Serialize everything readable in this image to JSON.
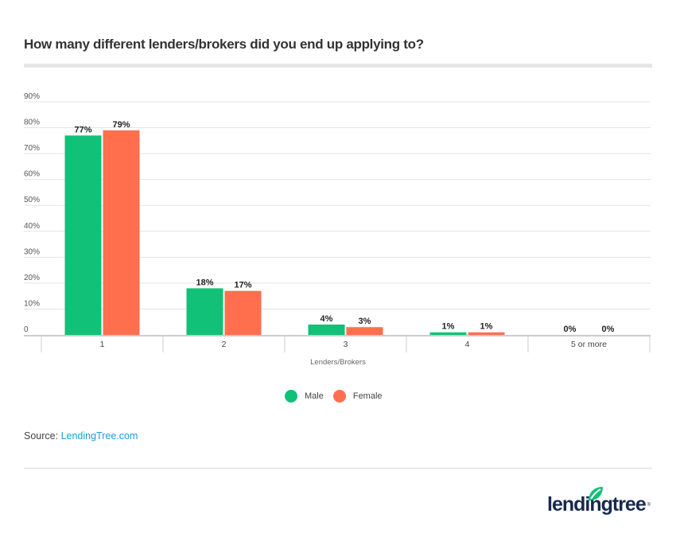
{
  "chart_data": {
    "type": "bar",
    "title": "How many different lenders/brokers did you end up applying to?",
    "xlabel": "Lenders/Brokers",
    "ylabel": "",
    "categories": [
      "1",
      "2",
      "3",
      "4",
      "5 or more"
    ],
    "series": [
      {
        "name": "Male",
        "color": "#10c177",
        "values": [
          77,
          18,
          4,
          1,
          0
        ],
        "labels": [
          "77%",
          "18%",
          "4%",
          "1%",
          "0%"
        ]
      },
      {
        "name": "Female",
        "color": "#ff6f4e",
        "values": [
          79,
          17,
          3,
          1,
          0
        ],
        "labels": [
          "79%",
          "17%",
          "3%",
          "1%",
          "0%"
        ]
      }
    ],
    "ylim": [
      0,
      90
    ],
    "yticks": [
      0,
      10,
      20,
      30,
      40,
      50,
      60,
      70,
      80,
      90
    ],
    "ytick_labels": [
      "0",
      "10%",
      "20%",
      "30%",
      "40%",
      "50%",
      "60%",
      "70%",
      "80%",
      "90%"
    ],
    "grid": true,
    "legend_position": "bottom-center"
  },
  "source": {
    "prefix": "Source: ",
    "link_text": "LendingTree.com"
  },
  "logo": {
    "text": "lendingtree",
    "reg": "®"
  },
  "colors": {
    "accent_link": "#1aa0db",
    "male": "#10c177",
    "female": "#ff6f4e"
  }
}
